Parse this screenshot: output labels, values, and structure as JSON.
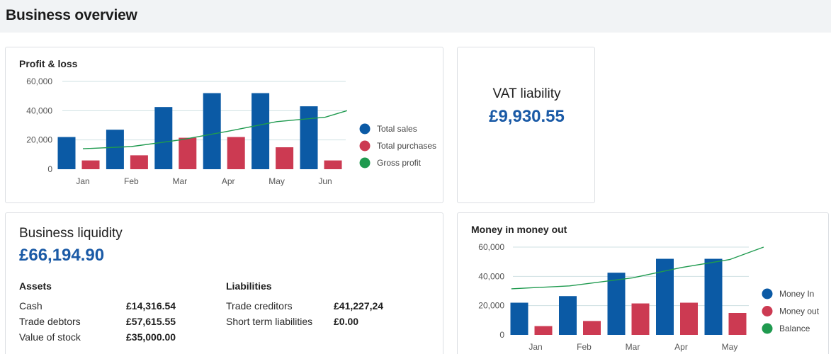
{
  "page": {
    "title": "Business overview"
  },
  "colors": {
    "blue": "#0b5aa5",
    "red": "#cc3a52",
    "green": "#15904a",
    "line": "#1f9a4f",
    "accent_text": "#1a5aa6"
  },
  "profit_loss": {
    "title": "Profit & loss",
    "legend": [
      "Total sales",
      "Total purchases",
      "Gross profit"
    ]
  },
  "vat": {
    "title": "VAT liability",
    "value": "£9,930.55"
  },
  "liquidity": {
    "title": "Business liquidity",
    "value": "£66,194.90",
    "assets": {
      "heading": "Assets",
      "rows": [
        {
          "label": "Cash",
          "value": "£14,316.54"
        },
        {
          "label": "Trade debtors",
          "value": "£57,615.55"
        },
        {
          "label": "Value of stock",
          "value": "£35,000.00"
        }
      ]
    },
    "liabilities": {
      "heading": "Liabilities",
      "rows": [
        {
          "label": "Trade creditors",
          "value": "£41,227,24"
        },
        {
          "label": "Short term liabilities",
          "value": "£0.00"
        }
      ]
    }
  },
  "money_in_out": {
    "title": "Money in money out",
    "legend": [
      "Money In",
      "Money out",
      "Balance"
    ]
  },
  "chart_data": [
    {
      "type": "bar",
      "title": "Profit & loss",
      "categories": [
        "Jan",
        "Feb",
        "Mar",
        "Apr",
        "May",
        "Jun"
      ],
      "yticks": [
        "0",
        "20,000",
        "40,000",
        "60,000"
      ],
      "ylim": [
        0,
        60000
      ],
      "grid": true,
      "legend_position": "right",
      "series": [
        {
          "name": "Total sales",
          "kind": "bar",
          "color": "#0b5aa5",
          "values": [
            22000,
            27000,
            42500,
            52000,
            52000,
            43000
          ]
        },
        {
          "name": "Total purchases",
          "kind": "bar",
          "color": "#cc3a52",
          "values": [
            6000,
            9500,
            21500,
            22000,
            15000,
            6000
          ]
        },
        {
          "name": "Gross profit",
          "kind": "line",
          "color": "#1f9a4f",
          "x": [
            0,
            1,
            2,
            3,
            4,
            5,
            5.45
          ],
          "values": [
            14000,
            15500,
            20000,
            26000,
            32500,
            35500,
            40000
          ]
        }
      ]
    },
    {
      "type": "bar",
      "title": "Money in money out",
      "categories": [
        "Jan",
        "Feb",
        "Mar",
        "Apr",
        "May"
      ],
      "yticks": [
        "0",
        "20,000",
        "40,000",
        "60,000"
      ],
      "ylim": [
        0,
        60000
      ],
      "grid": true,
      "legend_position": "right",
      "series": [
        {
          "name": "Money In",
          "kind": "bar",
          "color": "#0b5aa5",
          "values": [
            22000,
            26500,
            42500,
            52000,
            52000
          ]
        },
        {
          "name": "Money out",
          "kind": "bar",
          "color": "#cc3a52",
          "values": [
            6000,
            9500,
            21500,
            22000,
            15000
          ]
        },
        {
          "name": "Balance",
          "kind": "line",
          "color": "#1f9a4f",
          "x": [
            -0.5,
            0.7,
            2,
            3,
            4,
            4.7
          ],
          "values": [
            31500,
            33500,
            39000,
            46000,
            51500,
            60000
          ]
        }
      ]
    }
  ]
}
